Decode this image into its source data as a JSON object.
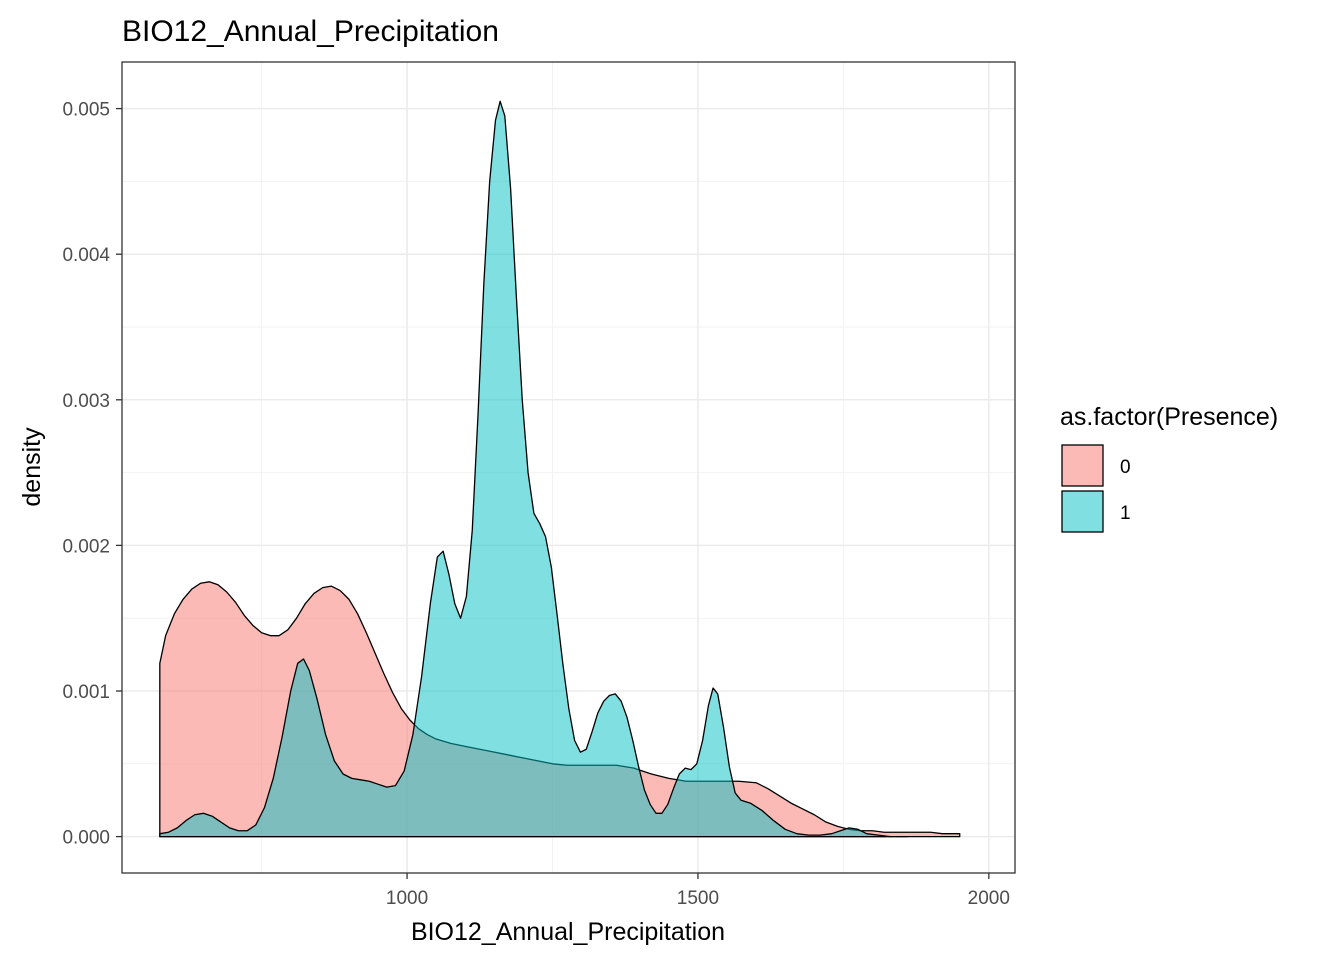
{
  "chart_data": {
    "type": "area",
    "subtype": "density",
    "title": "BIO12_Annual_Precipitation",
    "xlabel": "BIO12_Annual_Precipitation",
    "ylabel": "density",
    "xlim": [
      510,
      2045
    ],
    "ylim": [
      -0.00025,
      0.00532
    ],
    "x_ticks": [
      1000,
      1500,
      2000
    ],
    "x_tick_labels": [
      "1000",
      "1500",
      "2000"
    ],
    "y_ticks": [
      0,
      0.001,
      0.002,
      0.003,
      0.004,
      0.005
    ],
    "y_tick_labels": [
      "0.000",
      "0.001",
      "0.002",
      "0.003",
      "0.004",
      "0.005"
    ],
    "grid": true,
    "legend": {
      "title": "as.factor(Presence)",
      "position": "right"
    },
    "series": [
      {
        "name": "0",
        "color": "#F8766D",
        "points": [
          [
            575,
            0.00119
          ],
          [
            585,
            0.00138
          ],
          [
            600,
            0.00153
          ],
          [
            615,
            0.00163
          ],
          [
            630,
            0.0017
          ],
          [
            645,
            0.00174
          ],
          [
            660,
            0.00175
          ],
          [
            675,
            0.00173
          ],
          [
            690,
            0.00168
          ],
          [
            705,
            0.00161
          ],
          [
            720,
            0.00152
          ],
          [
            735,
            0.00145
          ],
          [
            750,
            0.0014
          ],
          [
            765,
            0.00138
          ],
          [
            780,
            0.00138
          ],
          [
            795,
            0.00142
          ],
          [
            810,
            0.0015
          ],
          [
            825,
            0.0016
          ],
          [
            840,
            0.00167
          ],
          [
            855,
            0.00171
          ],
          [
            870,
            0.00172
          ],
          [
            885,
            0.00169
          ],
          [
            900,
            0.00163
          ],
          [
            915,
            0.00153
          ],
          [
            930,
            0.0014
          ],
          [
            945,
            0.00126
          ],
          [
            960,
            0.00112
          ],
          [
            975,
            0.00099
          ],
          [
            990,
            0.00088
          ],
          [
            1005,
            0.0008
          ],
          [
            1020,
            0.00074
          ],
          [
            1035,
            0.0007
          ],
          [
            1050,
            0.00067
          ],
          [
            1075,
            0.00064
          ],
          [
            1100,
            0.00062
          ],
          [
            1125,
            0.0006
          ],
          [
            1150,
            0.00058
          ],
          [
            1175,
            0.00056
          ],
          [
            1200,
            0.00054
          ],
          [
            1225,
            0.00052
          ],
          [
            1250,
            0.0005
          ],
          [
            1275,
            0.00049
          ],
          [
            1300,
            0.00049
          ],
          [
            1330,
            0.00049
          ],
          [
            1360,
            0.00049
          ],
          [
            1390,
            0.00047
          ],
          [
            1420,
            0.00043
          ],
          [
            1450,
            0.0004
          ],
          [
            1480,
            0.00038
          ],
          [
            1510,
            0.00038
          ],
          [
            1540,
            0.00038
          ],
          [
            1570,
            0.00038
          ],
          [
            1600,
            0.00037
          ],
          [
            1620,
            0.00033
          ],
          [
            1640,
            0.00028
          ],
          [
            1660,
            0.00023
          ],
          [
            1680,
            0.00019
          ],
          [
            1700,
            0.00015
          ],
          [
            1720,
            0.0001
          ],
          [
            1740,
            7e-05
          ],
          [
            1760,
            5e-05
          ],
          [
            1780,
            4e-05
          ],
          [
            1800,
            4e-05
          ],
          [
            1820,
            3e-05
          ],
          [
            1840,
            3e-05
          ],
          [
            1860,
            3e-05
          ],
          [
            1880,
            3e-05
          ],
          [
            1900,
            3e-05
          ],
          [
            1920,
            2e-05
          ],
          [
            1950,
            2e-05
          ]
        ]
      },
      {
        "name": "1",
        "color": "#00BFC4",
        "points": [
          [
            575,
            2e-05
          ],
          [
            590,
            3e-05
          ],
          [
            605,
            6e-05
          ],
          [
            620,
            0.00011
          ],
          [
            635,
            0.00015
          ],
          [
            650,
            0.00016
          ],
          [
            665,
            0.00014
          ],
          [
            680,
            0.0001
          ],
          [
            695,
            6e-05
          ],
          [
            710,
            4e-05
          ],
          [
            725,
            4e-05
          ],
          [
            740,
            8e-05
          ],
          [
            755,
            0.0002
          ],
          [
            770,
            0.0004
          ],
          [
            785,
            0.00068
          ],
          [
            800,
            0.001
          ],
          [
            812,
            0.00119
          ],
          [
            822,
            0.00122
          ],
          [
            832,
            0.00114
          ],
          [
            845,
            0.00095
          ],
          [
            860,
            0.0007
          ],
          [
            875,
            0.00052
          ],
          [
            890,
            0.00043
          ],
          [
            905,
            0.0004
          ],
          [
            920,
            0.00039
          ],
          [
            935,
            0.00038
          ],
          [
            950,
            0.00036
          ],
          [
            965,
            0.00034
          ],
          [
            980,
            0.00035
          ],
          [
            995,
            0.00045
          ],
          [
            1010,
            0.0007
          ],
          [
            1025,
            0.0011
          ],
          [
            1040,
            0.0016
          ],
          [
            1052,
            0.00192
          ],
          [
            1062,
            0.00196
          ],
          [
            1072,
            0.0018
          ],
          [
            1082,
            0.0016
          ],
          [
            1092,
            0.0015
          ],
          [
            1102,
            0.00165
          ],
          [
            1112,
            0.0021
          ],
          [
            1122,
            0.0029
          ],
          [
            1132,
            0.0038
          ],
          [
            1142,
            0.0045
          ],
          [
            1152,
            0.00492
          ],
          [
            1160,
            0.00505
          ],
          [
            1168,
            0.00495
          ],
          [
            1178,
            0.00445
          ],
          [
            1188,
            0.0037
          ],
          [
            1198,
            0.003
          ],
          [
            1208,
            0.0025
          ],
          [
            1218,
            0.00222
          ],
          [
            1228,
            0.00215
          ],
          [
            1238,
            0.00206
          ],
          [
            1248,
            0.00185
          ],
          [
            1258,
            0.00152
          ],
          [
            1268,
            0.00118
          ],
          [
            1278,
            0.00088
          ],
          [
            1288,
            0.00066
          ],
          [
            1298,
            0.00058
          ],
          [
            1308,
            0.0006
          ],
          [
            1318,
            0.00072
          ],
          [
            1328,
            0.00085
          ],
          [
            1338,
            0.00093
          ],
          [
            1348,
            0.00097
          ],
          [
            1358,
            0.00098
          ],
          [
            1368,
            0.00093
          ],
          [
            1378,
            0.00082
          ],
          [
            1388,
            0.00066
          ],
          [
            1398,
            0.00048
          ],
          [
            1408,
            0.00032
          ],
          [
            1418,
            0.00022
          ],
          [
            1428,
            0.00016
          ],
          [
            1438,
            0.00016
          ],
          [
            1448,
            0.00022
          ],
          [
            1458,
            0.00033
          ],
          [
            1468,
            0.00043
          ],
          [
            1478,
            0.00047
          ],
          [
            1488,
            0.00046
          ],
          [
            1498,
            0.0005
          ],
          [
            1508,
            0.00066
          ],
          [
            1518,
            0.0009
          ],
          [
            1526,
            0.00102
          ],
          [
            1534,
            0.00098
          ],
          [
            1544,
            0.00075
          ],
          [
            1554,
            0.00048
          ],
          [
            1564,
            0.0003
          ],
          [
            1574,
            0.00025
          ],
          [
            1590,
            0.00023
          ],
          [
            1610,
            0.00018
          ],
          [
            1630,
            0.00011
          ],
          [
            1650,
            5e-05
          ],
          [
            1670,
            2e-05
          ],
          [
            1690,
            1e-05
          ],
          [
            1710,
            1e-05
          ],
          [
            1730,
            2e-05
          ],
          [
            1745,
            4e-05
          ],
          [
            1760,
            6e-05
          ],
          [
            1775,
            5e-05
          ],
          [
            1790,
            2e-05
          ],
          [
            1810,
            1e-05
          ],
          [
            1830,
            0.0
          ],
          [
            1860,
            0.0
          ]
        ]
      }
    ]
  }
}
